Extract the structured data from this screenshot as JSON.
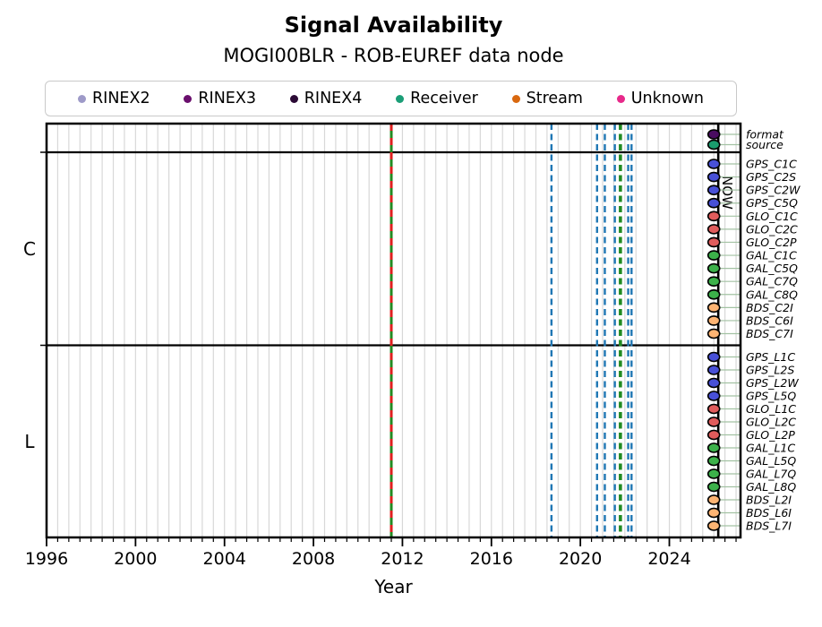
{
  "chart_data": {
    "type": "timeline",
    "title": "Signal Availability",
    "subtitle": "MOGI00BLR - ROB-EUREF data node",
    "xlabel": "Year",
    "x_range": [
      1996,
      2027.2
    ],
    "x_major_ticks": [
      "1996",
      "2000",
      "2004",
      "2008",
      "2012",
      "2016",
      "2020",
      "2024"
    ],
    "minor_tick_step": 0.5,
    "grid": true,
    "now": {
      "year": 2026.2,
      "label": "NOW"
    },
    "marker_year": 2026.0,
    "marker_line_color": "#a3c2a3",
    "legend": [
      {
        "label": "RINEX2",
        "color": "#9e9ac8"
      },
      {
        "label": "RINEX3",
        "color": "#6a0f6d"
      },
      {
        "label": "RINEX4",
        "color": "#2b0a35"
      },
      {
        "label": "Receiver",
        "color": "#1b9e77"
      },
      {
        "label": "Stream",
        "color": "#d9680f"
      },
      {
        "label": "Unknown",
        "color": "#e7298a"
      }
    ],
    "event_lines": [
      {
        "year": 2011.5,
        "color": "#228b22",
        "dash": "solid",
        "width": 3.0,
        "overlay_color": "#e01f1f"
      },
      {
        "year": 2018.7,
        "color": "#1f77b4",
        "dash": "dashed",
        "width": 2.4
      },
      {
        "year": 2020.75,
        "color": "#1f77b4",
        "dash": "dashed",
        "width": 2.4
      },
      {
        "year": 2021.1,
        "color": "#1f77b4",
        "dash": "dashed",
        "width": 2.4
      },
      {
        "year": 2021.55,
        "color": "#1f77b4",
        "dash": "dashed",
        "width": 2.4
      },
      {
        "year": 2021.8,
        "color": "#228b22",
        "dash": "dashed",
        "width": 3.6
      },
      {
        "year": 2022.15,
        "color": "#1f77b4",
        "dash": "dashed",
        "width": 2.4
      },
      {
        "year": 2022.3,
        "color": "#1f77b4",
        "dash": "dashed",
        "width": 2.4
      }
    ],
    "sections": [
      {
        "label": "",
        "rows": [
          {
            "label": "format",
            "color": "#4a0c60"
          },
          {
            "label": "source",
            "color": "#1a9c6e"
          }
        ]
      },
      {
        "label": "C",
        "rows": [
          {
            "label": "GPS_C1C",
            "color": "#4850d7"
          },
          {
            "label": "GPS_C2S",
            "color": "#4850d7"
          },
          {
            "label": "GPS_C2W",
            "color": "#4850d7"
          },
          {
            "label": "GPS_C5Q",
            "color": "#4850d7"
          },
          {
            "label": "GLO_C1C",
            "color": "#e05c5c"
          },
          {
            "label": "GLO_C2C",
            "color": "#e05c5c"
          },
          {
            "label": "GLO_C2P",
            "color": "#e05c5c"
          },
          {
            "label": "GAL_C1C",
            "color": "#3cb14a"
          },
          {
            "label": "GAL_C5Q",
            "color": "#3cb14a"
          },
          {
            "label": "GAL_C7Q",
            "color": "#3cb14a"
          },
          {
            "label": "GAL_C8Q",
            "color": "#3cb14a"
          },
          {
            "label": "BDS_C2I",
            "color": "#fdb473"
          },
          {
            "label": "BDS_C6I",
            "color": "#fdb473"
          },
          {
            "label": "BDS_C7I",
            "color": "#fdb473"
          }
        ]
      },
      {
        "label": "L",
        "rows": [
          {
            "label": "GPS_L1C",
            "color": "#4850d7"
          },
          {
            "label": "GPS_L2S",
            "color": "#4850d7"
          },
          {
            "label": "GPS_L2W",
            "color": "#4850d7"
          },
          {
            "label": "GPS_L5Q",
            "color": "#4850d7"
          },
          {
            "label": "GLO_L1C",
            "color": "#e05c5c"
          },
          {
            "label": "GLO_L2C",
            "color": "#e05c5c"
          },
          {
            "label": "GLO_L2P",
            "color": "#e05c5c"
          },
          {
            "label": "GAL_L1C",
            "color": "#3cb14a"
          },
          {
            "label": "GAL_L5Q",
            "color": "#3cb14a"
          },
          {
            "label": "GAL_L7Q",
            "color": "#3cb14a"
          },
          {
            "label": "GAL_L8Q",
            "color": "#3cb14a"
          },
          {
            "label": "BDS_L2I",
            "color": "#fdb473"
          },
          {
            "label": "BDS_L6I",
            "color": "#fdb473"
          },
          {
            "label": "BDS_L7I",
            "color": "#fdb473"
          }
        ]
      }
    ]
  }
}
